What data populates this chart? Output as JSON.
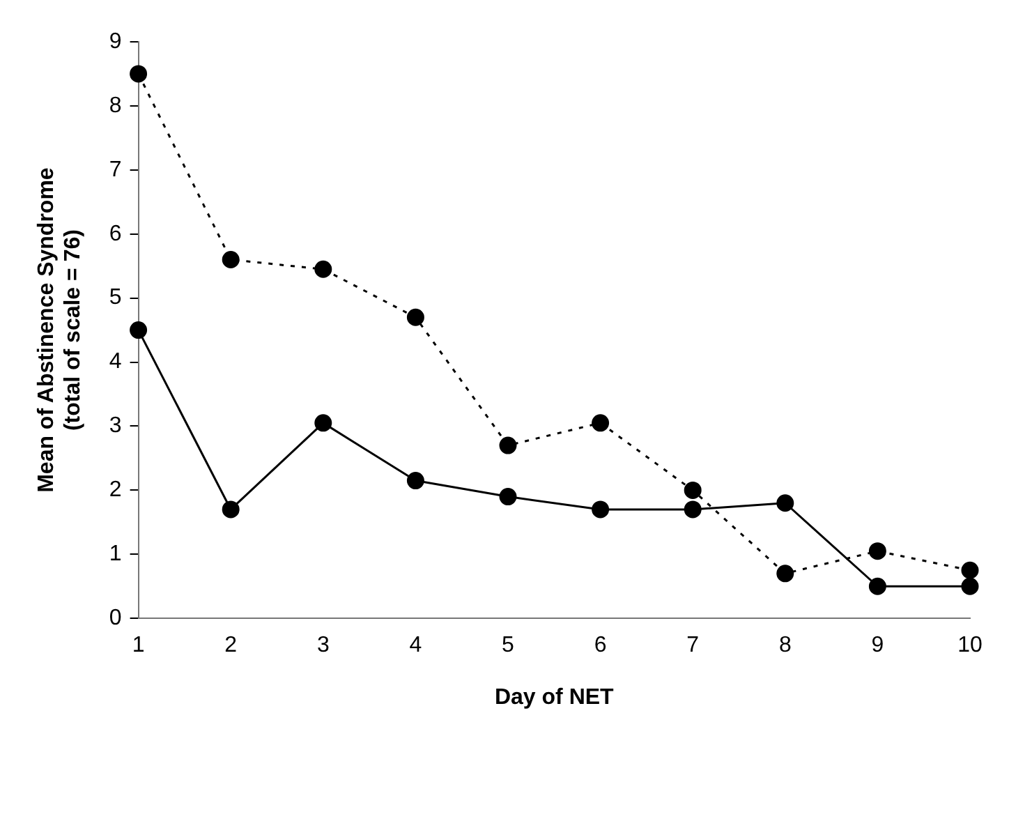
{
  "chart_data": {
    "type": "line",
    "xlabel": "Day of NET",
    "ylabel": "Mean of Abstinence Syndrome\n(total of scale = 76)",
    "categories": [
      "1",
      "2",
      "3",
      "4",
      "5",
      "6",
      "7",
      "8",
      "9",
      "10"
    ],
    "series": [
      {
        "color": "#000000",
        "line_style": "dotted",
        "values": [
          8.5,
          5.6,
          5.45,
          4.7,
          2.7,
          3.05,
          2.0,
          0.7,
          1.05,
          0.75
        ]
      },
      {
        "color": "#000000",
        "line_style": "solid",
        "values": [
          4.5,
          1.7,
          3.05,
          2.15,
          1.9,
          1.7,
          1.7,
          1.8,
          0.5,
          0.5
        ]
      }
    ],
    "ylim": [
      0,
      9
    ],
    "yticks": [
      0,
      1,
      2,
      3,
      4,
      5,
      6,
      7,
      8,
      9
    ],
    "grid": false,
    "legend": false,
    "marker": "circle"
  }
}
